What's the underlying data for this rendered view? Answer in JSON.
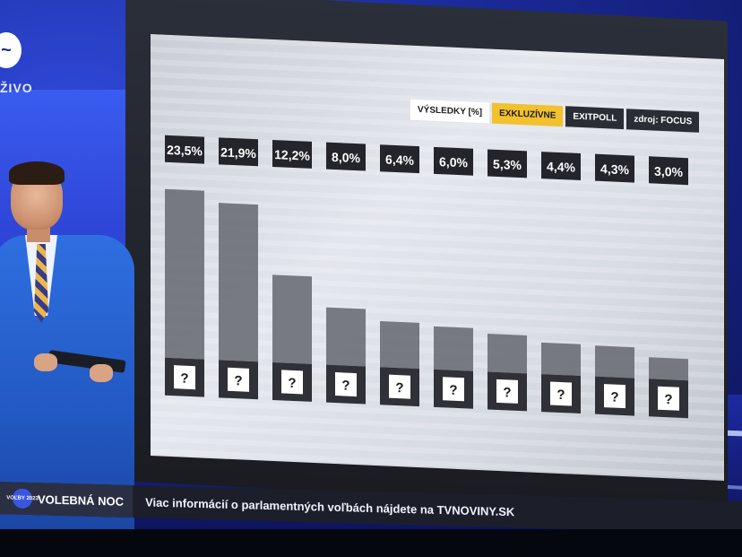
{
  "broadcast": {
    "logo_text": "ŽIVO",
    "program": "VOLEBNÁ NOC",
    "badge_text": "VOĽBY 2023",
    "ticker": "Viac informácií o parlamentných voľbách nájdete na TVNOVINY.SK"
  },
  "header": {
    "tab_results": "VÝSLEDKY [%]",
    "tab_exclusive": "EXKLUZÍVNE",
    "tab_exitpoll": "EXITPOLL",
    "tab_source": "zdroj: FOCUS"
  },
  "colors": {
    "excl": "#f2c12e",
    "bar": "#6b6e76",
    "bar_dark": "#2f3137",
    "label_bg": "#23252b"
  },
  "chart_data": {
    "type": "bar",
    "title": "VÝSLEDKY [%]",
    "categories": [
      "?",
      "?",
      "?",
      "?",
      "?",
      "?",
      "?",
      "?",
      "?",
      "?"
    ],
    "values": [
      23.5,
      21.9,
      12.2,
      8.0,
      6.4,
      6.0,
      5.3,
      4.4,
      4.3,
      3.0
    ],
    "value_labels": [
      "23,5%",
      "21,9%",
      "12,2%",
      "8,0%",
      "6,4%",
      "6,0%",
      "5,3%",
      "4,4%",
      "4,3%",
      "3,0%"
    ],
    "xlabel": "",
    "ylabel": "%",
    "ylim": [
      0,
      25
    ],
    "grid": false
  }
}
